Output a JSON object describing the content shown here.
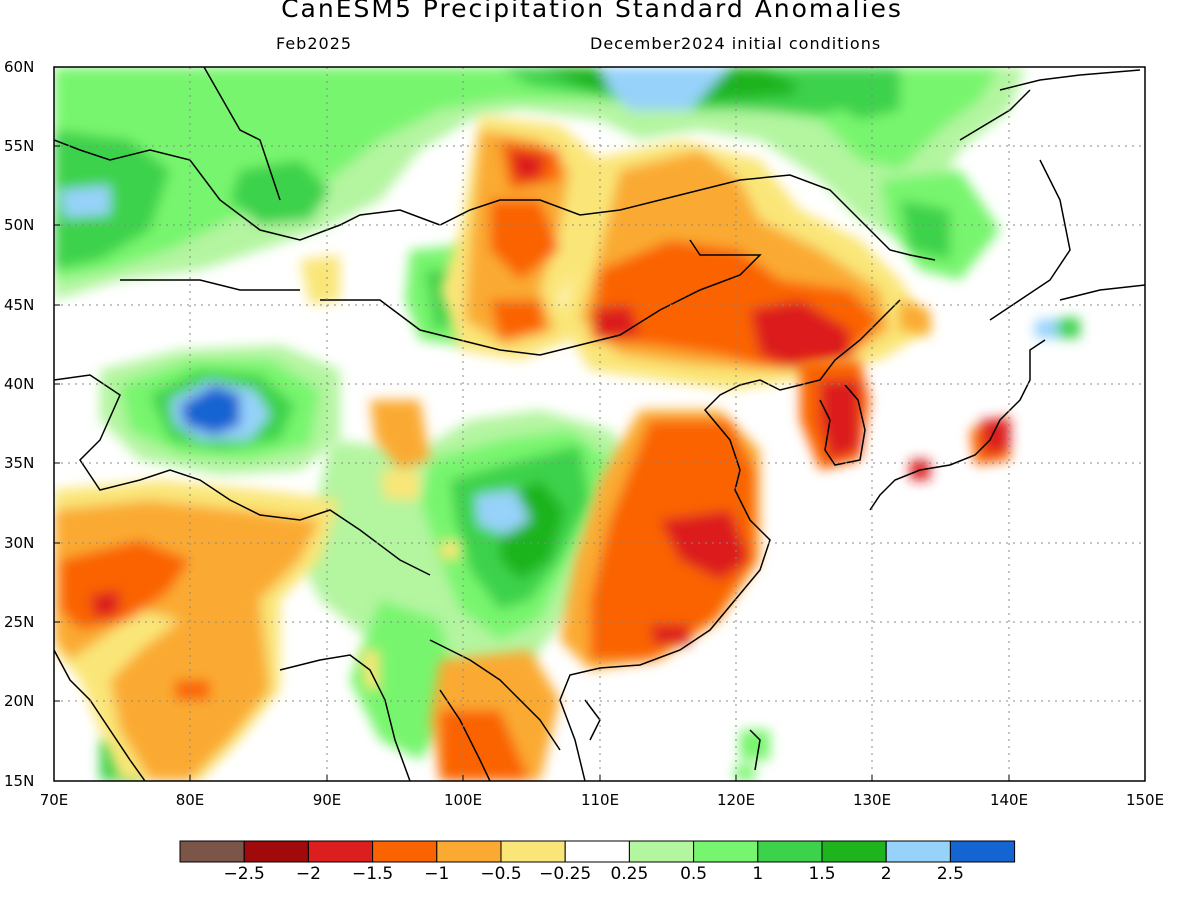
{
  "title": "CanESM5 Precipitation Standard Anomalies",
  "subtitle_left": "Feb2025",
  "subtitle_right": "December2024 initial conditions",
  "lat_labels": [
    "60N",
    "55N",
    "50N",
    "45N",
    "40N",
    "35N",
    "30N",
    "25N",
    "20N",
    "15N"
  ],
  "lon_labels": [
    "70E",
    "80E",
    "90E",
    "100E",
    "110E",
    "120E",
    "130E",
    "140E",
    "150E"
  ],
  "colorbar": {
    "colors": [
      "#7a5548",
      "#a00a0a",
      "#dc1e1e",
      "#fa6400",
      "#faaa32",
      "#fae678",
      "#ffffff",
      "#b4f5a0",
      "#78f56e",
      "#3cd24b",
      "#1eb41e",
      "#96d2fa",
      "#1464d2"
    ],
    "labels": [
      "−2.5",
      "−2",
      "−1.5",
      "−1",
      "−0.5",
      "−0.25",
      "0.25",
      "0.5",
      "1",
      "1.5",
      "2",
      "2.5"
    ]
  },
  "legend_colors": {
    "deep_red": "#a00a0a",
    "red": "#dc1e1e",
    "orange": "#fa6400",
    "light_orange": "#faaa32",
    "yellow": "#fae678",
    "light_green": "#b4f5a0",
    "green": "#78f56e",
    "mid_green": "#3cd24b",
    "dark_green": "#1eb41e",
    "light_blue": "#96d2fa",
    "blue": "#1464d2"
  }
}
